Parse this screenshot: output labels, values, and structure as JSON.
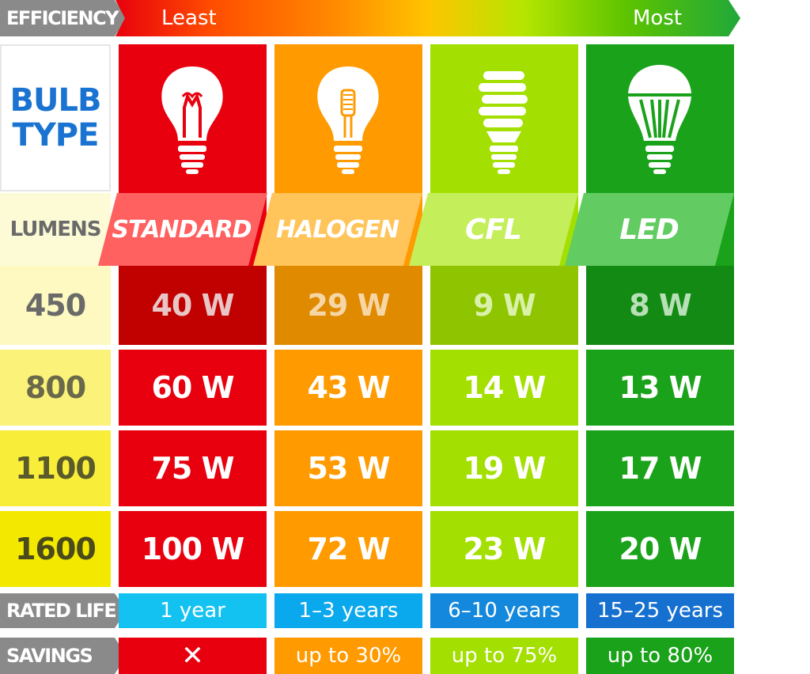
{
  "efficiency": {
    "label": "EFFICIENCY",
    "least": "Least",
    "most": "Most"
  },
  "bulb_type_label": [
    "BULB",
    "TYPE"
  ],
  "lumens_label": "LUMENS",
  "bulbs": [
    {
      "name": "STANDARD",
      "color": "#e8000e",
      "band": "#ff6060",
      "icon": "incandescent-bulb-icon"
    },
    {
      "name": "HALOGEN",
      "color": "#ff9a00",
      "band": "#ffc45a",
      "icon": "halogen-bulb-icon"
    },
    {
      "name": "CFL",
      "color": "#a3df00",
      "band": "#c4ee5a",
      "icon": "cfl-bulb-icon"
    },
    {
      "name": "LED",
      "color": "#1ba21b",
      "band": "#62cc62",
      "icon": "led-bulb-icon"
    }
  ],
  "rows": [
    {
      "lumens": "450",
      "watts": [
        "40 W",
        "29 W",
        "9 W",
        "8 W"
      ]
    },
    {
      "lumens": "800",
      "watts": [
        "60 W",
        "43 W",
        "14 W",
        "13 W"
      ]
    },
    {
      "lumens": "1100",
      "watts": [
        "75 W",
        "53 W",
        "19 W",
        "17 W"
      ]
    },
    {
      "lumens": "1600",
      "watts": [
        "100 W",
        "72 W",
        "23 W",
        "20 W"
      ]
    }
  ],
  "rated_life": {
    "label": "RATED LIFE",
    "values": [
      "1 year",
      "1–3 years",
      "6–10 years",
      "15–25 years"
    ]
  },
  "savings": {
    "label": "SAVINGS",
    "values": [
      "✕",
      "up to 30%",
      "up to 75%",
      "up to 80%"
    ]
  }
}
